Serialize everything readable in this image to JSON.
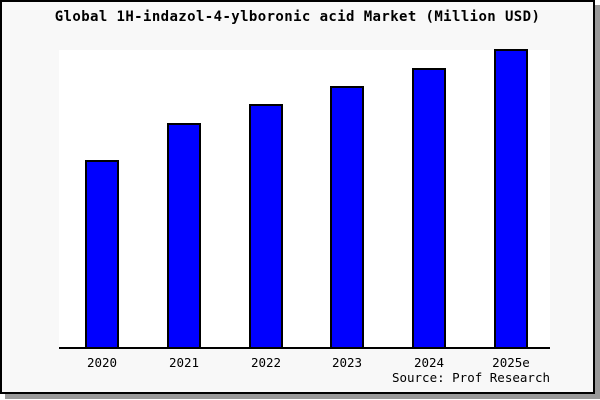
{
  "title": "Global 1H-indazol-4-ylboronic acid Market (Million USD)",
  "source_note": "Source: Prof Research",
  "colors": {
    "bar_fill": "#0000ff",
    "bar_outline": "#000000",
    "figure_background": "#f8f8f8",
    "plot_background": "#ffffff",
    "frame_border": "#000000",
    "shadow": "#999999",
    "text": "#000000"
  },
  "chart_data": {
    "type": "bar",
    "title": "Global 1H-indazol-4-ylboronic acid Market (Million USD)",
    "categories": [
      "2020",
      "2021",
      "2022",
      "2023",
      "2024",
      "2025e"
    ],
    "values": [
      187,
      224,
      243,
      262,
      280,
      299
    ],
    "value_scale": "relative height units; no y-axis scale, ticks, gridlines or data labels are shown in the chart",
    "xlabel": "",
    "ylabel": "",
    "ylim": [
      0,
      300
    ],
    "grid": false,
    "legend": "none",
    "bar_color": "#0000ff",
    "source": "Source: Prof Research"
  }
}
